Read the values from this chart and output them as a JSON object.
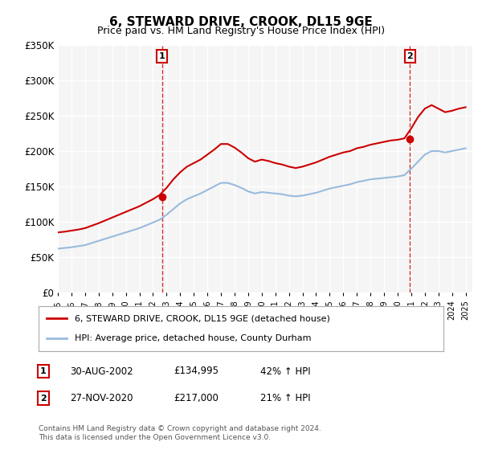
{
  "title": "6, STEWARD DRIVE, CROOK, DL15 9GE",
  "subtitle": "Price paid vs. HM Land Registry's House Price Index (HPI)",
  "ylabel": "",
  "xlabel": "",
  "ylim": [
    0,
    350000
  ],
  "yticks": [
    0,
    50000,
    100000,
    150000,
    200000,
    250000,
    300000,
    350000
  ],
  "ytick_labels": [
    "£0",
    "£50K",
    "£100K",
    "£150K",
    "£200K",
    "£250K",
    "£300K",
    "£350K"
  ],
  "background_color": "#ffffff",
  "plot_bg_color": "#f5f5f5",
  "grid_color": "#ffffff",
  "red_line_color": "#cc0000",
  "blue_line_color": "#99bbdd",
  "sale1_x": 2002.66,
  "sale1_y": 134995,
  "sale2_x": 2020.9,
  "sale2_y": 217000,
  "vline1_x": 2002.66,
  "vline2_x": 2020.9,
  "vline_color": "#cc0000",
  "legend_label_red": "6, STEWARD DRIVE, CROOK, DL15 9GE (detached house)",
  "legend_label_blue": "HPI: Average price, detached house, County Durham",
  "table_rows": [
    [
      "1",
      "30-AUG-2002",
      "£134,995",
      "42% ↑ HPI"
    ],
    [
      "2",
      "27-NOV-2020",
      "£217,000",
      "21% ↑ HPI"
    ]
  ],
  "footer": "Contains HM Land Registry data © Crown copyright and database right 2024.\nThis data is licensed under the Open Government Licence v3.0.",
  "xmin": 1995,
  "xmax": 2025.5,
  "hpi_years": [
    1995,
    1995.5,
    1996,
    1996.5,
    1997,
    1997.5,
    1998,
    1998.5,
    1999,
    1999.5,
    2000,
    2000.5,
    2001,
    2001.5,
    2002,
    2002.5,
    2003,
    2003.5,
    2004,
    2004.5,
    2005,
    2005.5,
    2006,
    2006.5,
    2007,
    2007.5,
    2008,
    2008.5,
    2009,
    2009.5,
    2010,
    2010.5,
    2011,
    2011.5,
    2012,
    2012.5,
    2013,
    2013.5,
    2014,
    2014.5,
    2015,
    2015.5,
    2016,
    2016.5,
    2017,
    2017.5,
    2018,
    2018.5,
    2019,
    2019.5,
    2020,
    2020.5,
    2021,
    2021.5,
    2022,
    2022.5,
    2023,
    2023.5,
    2024,
    2024.5,
    2025
  ],
  "hpi_blue": [
    62000,
    63000,
    64000,
    65500,
    67000,
    70000,
    73000,
    76000,
    79000,
    82000,
    85000,
    88000,
    91000,
    95000,
    99000,
    103000,
    110000,
    118000,
    126000,
    132000,
    136000,
    140000,
    145000,
    150000,
    155000,
    155000,
    152000,
    148000,
    143000,
    140000,
    142000,
    141000,
    140000,
    139000,
    137000,
    136000,
    137000,
    139000,
    141000,
    144000,
    147000,
    149000,
    151000,
    153000,
    156000,
    158000,
    160000,
    161000,
    162000,
    163000,
    164000,
    166000,
    175000,
    185000,
    195000,
    200000,
    200000,
    198000,
    200000,
    202000,
    204000
  ],
  "hpi_red": [
    85000,
    86000,
    87500,
    89000,
    91000,
    94500,
    98000,
    102000,
    106000,
    110000,
    114000,
    118000,
    122000,
    127000,
    132000,
    138000,
    148000,
    160000,
    170000,
    178000,
    183000,
    188000,
    195000,
    202000,
    210000,
    210000,
    205000,
    198000,
    190000,
    185000,
    188000,
    186000,
    183000,
    181000,
    178000,
    176000,
    178000,
    181000,
    184000,
    188000,
    192000,
    195000,
    198000,
    200000,
    204000,
    206000,
    209000,
    211000,
    213000,
    215000,
    216000,
    218000,
    232000,
    248000,
    260000,
    265000,
    260000,
    255000,
    257000,
    260000,
    262000
  ]
}
